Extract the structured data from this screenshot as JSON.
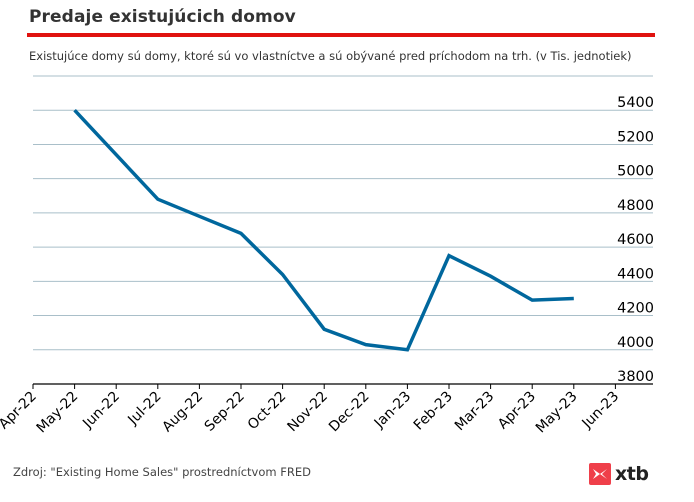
{
  "header": {
    "title": "Predaje existujúcich domov",
    "subtitle": "Existujúce domy sú domy, ktoré sú vo vlastníctve a sú obývané pred príchodom na trh. (v Tis. jednotiek)"
  },
  "footer": {
    "source": "Zdroj: \"Existing Home Sales\" prostredníctvom FRED",
    "logo_text": "xtb",
    "logo_icon": "xtb-logo-icon"
  },
  "colors": {
    "accent_rule": "#e0120f",
    "line": "#00679d",
    "grid": "#a9bfc9",
    "axis": "#000000",
    "logo": "#ef3f4a"
  },
  "chart_data": {
    "type": "line",
    "title": "Predaje existujúcich domov",
    "xlabel": "",
    "ylabel": "",
    "x_ticks": [
      "Apr-22",
      "May-22",
      "Jun-22",
      "Jul-22",
      "Aug-22",
      "Sep-22",
      "Oct-22",
      "Nov-22",
      "Dec-22",
      "Jan-23",
      "Feb-23",
      "Mar-23",
      "Apr-23",
      "May-23",
      "Jun-23"
    ],
    "y_ticks": [
      3800,
      4000,
      4200,
      4400,
      4600,
      4800,
      5000,
      5200,
      5400
    ],
    "ylim": [
      3800,
      5600
    ],
    "grid": true,
    "y_axis_side": "right",
    "series": [
      {
        "name": "Existing Home Sales",
        "x": [
          "May-22",
          "Jun-22",
          "Jul-22",
          "Aug-22",
          "Sep-22",
          "Oct-22",
          "Nov-22",
          "Dec-22",
          "Jan-23",
          "Feb-23",
          "Mar-23",
          "Apr-23",
          "May-23"
        ],
        "values": [
          5400,
          5140,
          4880,
          4780,
          4680,
          4440,
          4120,
          4030,
          4000,
          4550,
          4430,
          4290,
          4300
        ]
      }
    ]
  }
}
